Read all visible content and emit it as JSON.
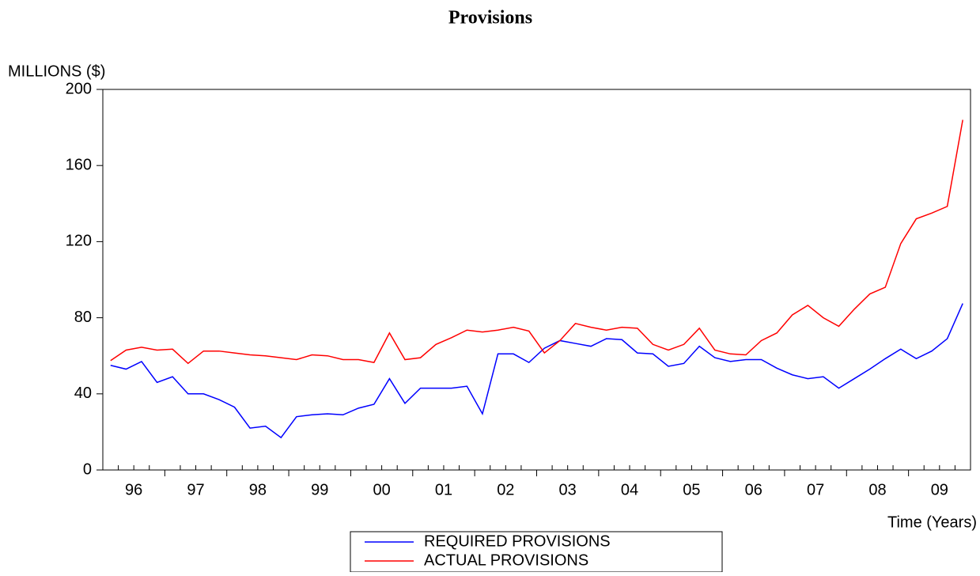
{
  "chart_data": {
    "type": "line",
    "title": "Provisions",
    "y_label": "MILLIONS ($)",
    "x_label": "Time (Years)",
    "categories": [
      null,
      "96",
      null,
      null,
      null,
      "97",
      null,
      null,
      null,
      "98",
      null,
      null,
      null,
      "99",
      null,
      null,
      null,
      "00",
      null,
      null,
      null,
      "01",
      null,
      null,
      null,
      "02",
      null,
      null,
      null,
      "03",
      null,
      null,
      null,
      "04",
      null,
      null,
      null,
      "05",
      null,
      null,
      null,
      "06",
      null,
      null,
      null,
      "07",
      null,
      null,
      null,
      "08",
      null,
      null,
      null,
      "09",
      null,
      null
    ],
    "series": [
      {
        "name": "REQUIRED PROVISIONS",
        "color": "#0000ff",
        "values": [
          55,
          53,
          57,
          46,
          49,
          40,
          40,
          37,
          33,
          22,
          23,
          17,
          28,
          29,
          29.5,
          29,
          32.5,
          34.5,
          48,
          35,
          43,
          43,
          43,
          44,
          29.5,
          61,
          61,
          56.5,
          64,
          68,
          66.5,
          65,
          69,
          68.5,
          61.5,
          61,
          54.5,
          56,
          65,
          59,
          57,
          58,
          58,
          53.5,
          50,
          48,
          49,
          43,
          48,
          53,
          58.5,
          63.5,
          58.5,
          62.5,
          69,
          87.5
        ]
      },
      {
        "name": "ACTUAL PROVISIONS",
        "color": "#ff0000",
        "values": [
          57.5,
          63,
          64.5,
          63,
          63.5,
          56,
          62.5,
          62.5,
          61.5,
          60.5,
          60,
          59,
          58,
          60.5,
          60,
          58,
          58,
          56.5,
          72,
          58,
          59,
          66,
          69.5,
          73.5,
          72.5,
          73.5,
          75,
          73,
          61.5,
          68,
          77,
          75,
          73.5,
          75,
          74.5,
          66,
          63,
          66,
          74.5,
          63,
          61,
          60.5,
          68,
          72,
          81.5,
          86.5,
          80,
          75.5,
          84.5,
          92.5,
          96,
          119,
          132,
          135,
          138.5,
          184
        ]
      }
    ],
    "ylim": [
      0,
      200
    ],
    "yticks": [
      0,
      40,
      80,
      120,
      160,
      200
    ]
  }
}
